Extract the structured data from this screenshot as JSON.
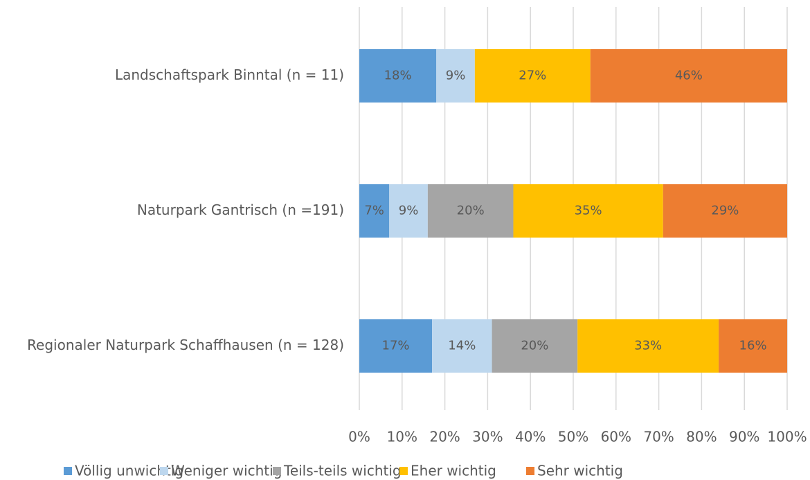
{
  "chart_data": {
    "type": "stacked-bar-horizontal",
    "categories": [
      "Landschaftspark Binntal (n = 11)",
      "Naturpark Gantrisch (n =191)",
      "Regionaler Naturpark Schaffhausen (n = 128)"
    ],
    "series": [
      {
        "name": "Völlig unwichtig",
        "color": "#5b9bd5",
        "values": [
          18,
          7,
          17
        ],
        "value_labels": [
          "18%",
          "7%",
          "17%"
        ]
      },
      {
        "name": "Weniger wichtig",
        "color": "#bdd7ee",
        "values": [
          9,
          9,
          14
        ],
        "value_labels": [
          "9%",
          "9%",
          "14%"
        ]
      },
      {
        "name": "Teils-teils wichtig",
        "color": "#a5a5a5",
        "values": [
          0,
          20,
          20
        ],
        "value_labels": [
          null,
          "20%",
          "20%"
        ]
      },
      {
        "name": "Eher wichtig",
        "color": "#ffc000",
        "values": [
          27,
          35,
          33
        ],
        "value_labels": [
          "27%",
          "35%",
          "33%"
        ]
      },
      {
        "name": "Sehr wichtig",
        "color": "#ed7d31",
        "values": [
          46,
          29,
          16
        ],
        "value_labels": [
          "46%",
          "29%",
          "16%"
        ]
      }
    ],
    "xlim": [
      0,
      100
    ],
    "xticks": [
      {
        "value": 0,
        "label": "0%"
      },
      {
        "value": 10,
        "label": "10%"
      },
      {
        "value": 20,
        "label": "20%"
      },
      {
        "value": 30,
        "label": "30%"
      },
      {
        "value": 40,
        "label": "40%"
      },
      {
        "value": 50,
        "label": "50%"
      },
      {
        "value": 60,
        "label": "60%"
      },
      {
        "value": 70,
        "label": "70%"
      },
      {
        "value": 80,
        "label": "80%"
      },
      {
        "value": 90,
        "label": "90%"
      },
      {
        "value": 100,
        "label": "100%"
      }
    ],
    "grid": true,
    "legend": "bottom"
  }
}
